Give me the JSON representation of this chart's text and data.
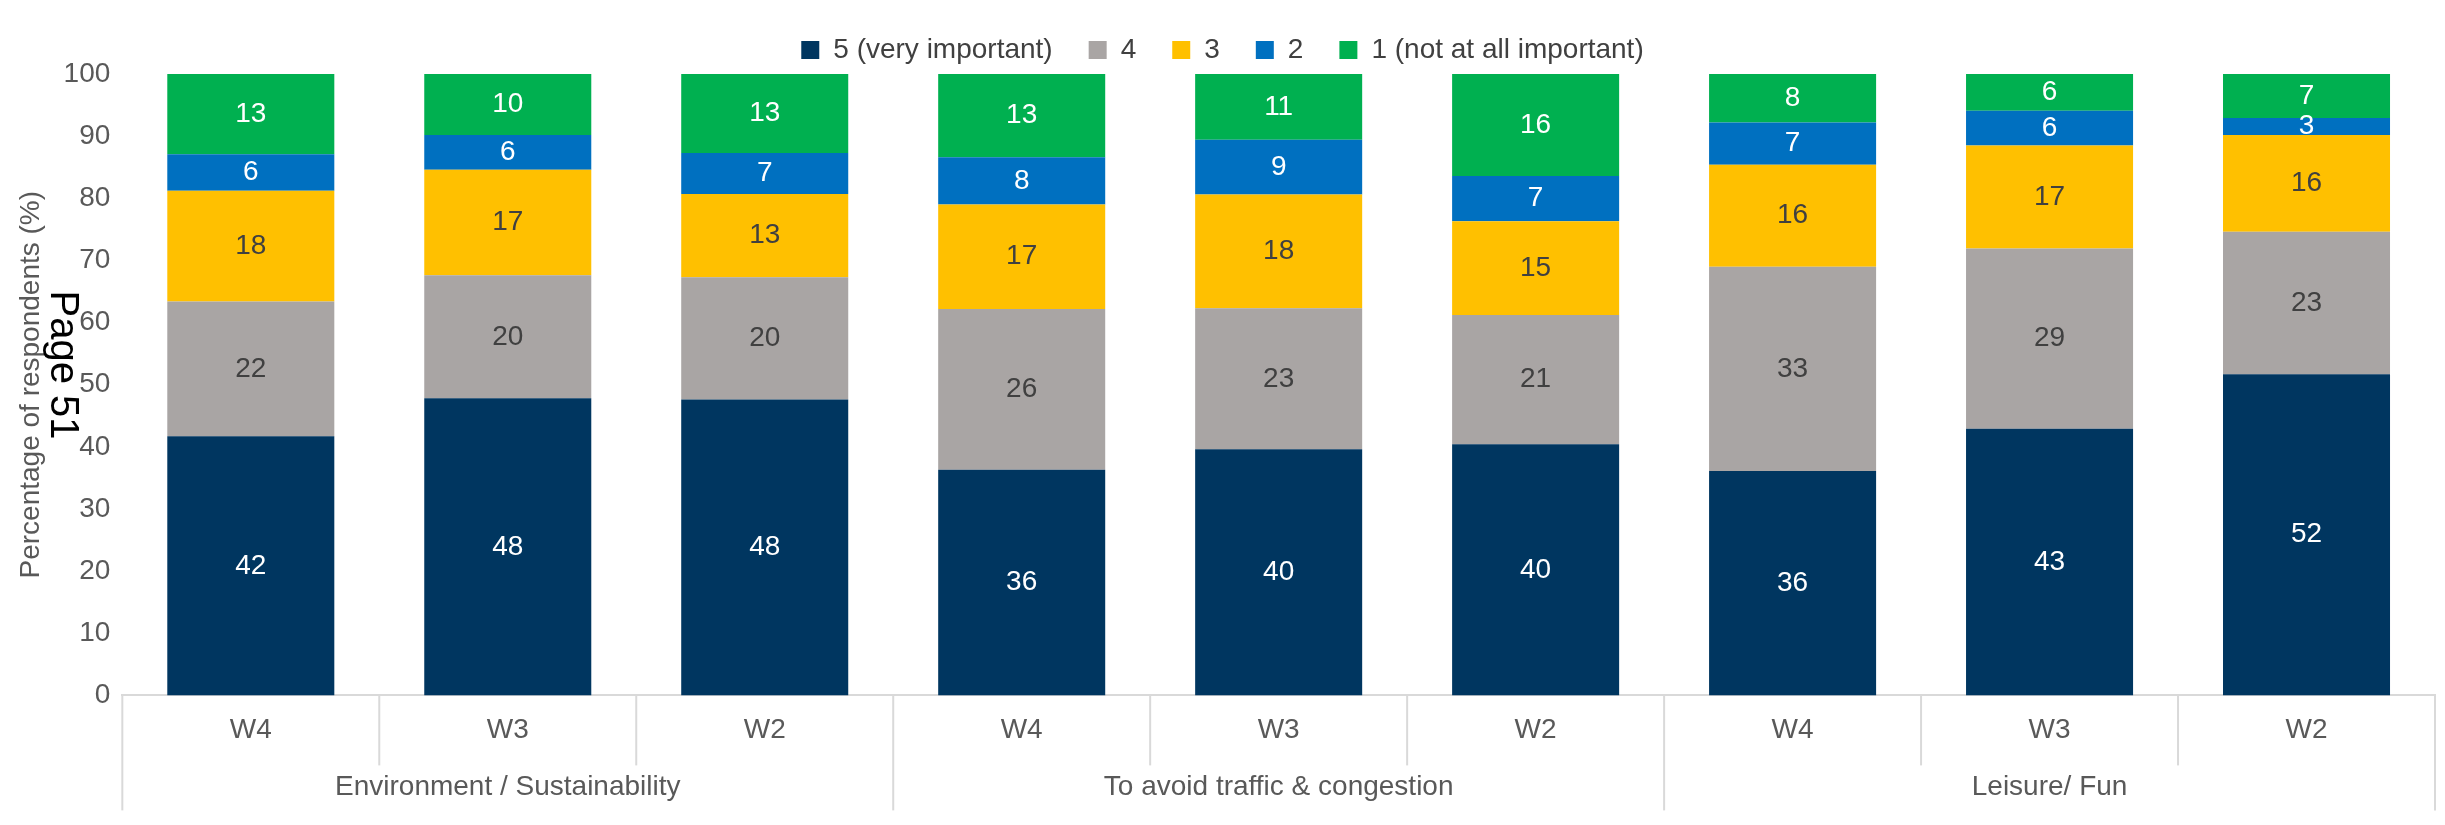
{
  "chart_data": {
    "type": "bar",
    "stacked": true,
    "ylabel": "Percentage of respondents (%)",
    "categories": [
      "W4",
      "W3",
      "W2",
      "W4",
      "W3",
      "W2",
      "W4",
      "W3",
      "W2"
    ],
    "ylim": [
      0,
      100
    ],
    "yticks": [
      0,
      10,
      20,
      30,
      40,
      50,
      60,
      70,
      80,
      90,
      100
    ],
    "grid": false,
    "legend": "top",
    "series": [
      {
        "name": "5 (very important)",
        "color": "#003660",
        "values": [
          41.7,
          47.8,
          47.6,
          36.3,
          39.6,
          40.4,
          36.1,
          42.9,
          51.7
        ],
        "value_labels": [
          "42",
          "48",
          "48",
          "36",
          "40",
          "40",
          "36",
          "43",
          "52"
        ]
      },
      {
        "name": "4",
        "color": "#a9a5a4",
        "values": [
          21.7,
          19.8,
          19.7,
          25.9,
          22.7,
          20.8,
          32.9,
          29.0,
          22.9
        ],
        "value_labels": [
          "22",
          "20",
          "20",
          "26",
          "23",
          "21",
          "33",
          "29",
          "23"
        ]
      },
      {
        "name": "3",
        "color": "#ffc000",
        "values": [
          17.8,
          17.0,
          13.4,
          16.8,
          18.3,
          15.1,
          16.4,
          16.6,
          15.6
        ],
        "value_labels": [
          "18",
          "17",
          "13",
          "17",
          "18",
          "15",
          "16",
          "17",
          "16"
        ]
      },
      {
        "name": "2",
        "color": "#0070c0",
        "values": [
          5.9,
          5.6,
          6.6,
          7.6,
          8.8,
          7.3,
          6.8,
          5.6,
          2.7
        ],
        "value_labels": [
          "6",
          "6",
          "7",
          "8",
          "9",
          "7",
          "7",
          "6",
          "3"
        ]
      },
      {
        "name": "1 (not at all important)",
        "color": "#00b050",
        "values": [
          12.9,
          9.8,
          12.7,
          13.4,
          10.6,
          16.4,
          7.8,
          5.9,
          7.1
        ],
        "value_labels": [
          "13",
          "10",
          "13",
          "13",
          "11",
          "16",
          "8",
          "6",
          "7"
        ]
      }
    ],
    "annotations": [
      "Environment / Sustainability",
      "To avoid traffic & congestion",
      "Leisure/ Fun",
      "Page 51"
    ]
  }
}
